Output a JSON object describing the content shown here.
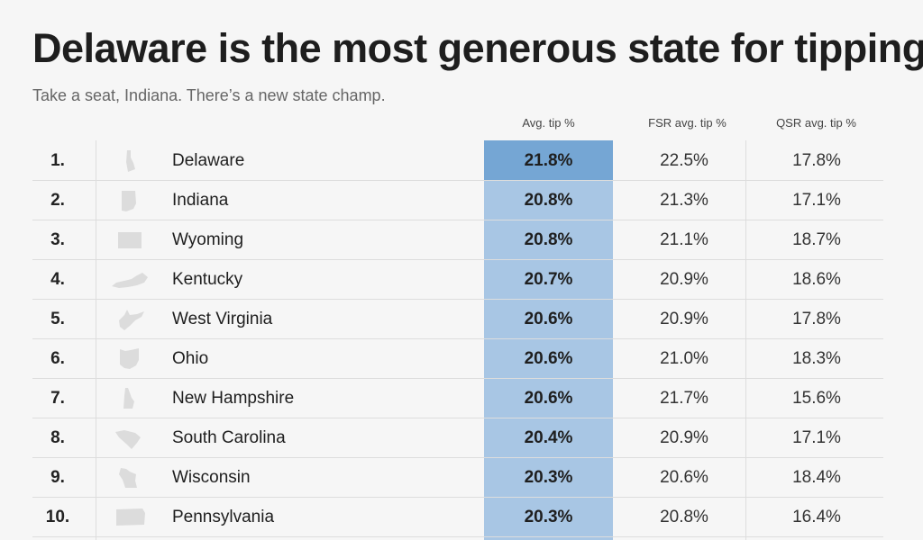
{
  "title": "Delaware is the most generous state for tipping",
  "subtitle": "Take a seat, Indiana. There’s a new state champ.",
  "colors": {
    "background": "#f6f6f6",
    "highlight_column": "#a8c6e4",
    "highlight_top": "#75a6d4",
    "state_shape": "#dcdcdc",
    "grid": "#dddddd"
  },
  "chart_data": {
    "type": "table",
    "title": "Delaware is the most generous state for tipping",
    "subtitle": "Take a seat, Indiana. There’s a new state champ.",
    "columns": [
      "Avg. tip %",
      "FSR avg. tip %",
      "QSR avg. tip %"
    ],
    "highlighted_column": "Avg. tip %",
    "rows": [
      {
        "rank": "1.",
        "state": "Delaware",
        "shape_icon": "delaware-shape-icon",
        "avg": "21.8%",
        "fsr": "22.5%",
        "qsr": "17.8%"
      },
      {
        "rank": "2.",
        "state": "Indiana",
        "shape_icon": "indiana-shape-icon",
        "avg": "20.8%",
        "fsr": "21.3%",
        "qsr": "17.1%"
      },
      {
        "rank": "3.",
        "state": "Wyoming",
        "shape_icon": "wyoming-shape-icon",
        "avg": "20.8%",
        "fsr": "21.1%",
        "qsr": "18.7%"
      },
      {
        "rank": "4.",
        "state": "Kentucky",
        "shape_icon": "kentucky-shape-icon",
        "avg": "20.7%",
        "fsr": "20.9%",
        "qsr": "18.6%"
      },
      {
        "rank": "5.",
        "state": "West Virginia",
        "shape_icon": "west-virginia-shape-icon",
        "avg": "20.6%",
        "fsr": "20.9%",
        "qsr": "17.8%"
      },
      {
        "rank": "6.",
        "state": "Ohio",
        "shape_icon": "ohio-shape-icon",
        "avg": "20.6%",
        "fsr": "21.0%",
        "qsr": "18.3%"
      },
      {
        "rank": "7.",
        "state": "New Hampshire",
        "shape_icon": "new-hampshire-shape-icon",
        "avg": "20.6%",
        "fsr": "21.7%",
        "qsr": "15.6%"
      },
      {
        "rank": "8.",
        "state": "South Carolina",
        "shape_icon": "south-carolina-shape-icon",
        "avg": "20.4%",
        "fsr": "20.9%",
        "qsr": "17.1%"
      },
      {
        "rank": "9.",
        "state": "Wisconsin",
        "shape_icon": "wisconsin-shape-icon",
        "avg": "20.3%",
        "fsr": "20.6%",
        "qsr": "18.4%"
      },
      {
        "rank": "10.",
        "state": "Pennsylvania",
        "shape_icon": "pennsylvania-shape-icon",
        "avg": "20.3%",
        "fsr": "20.8%",
        "qsr": "16.4%"
      }
    ]
  }
}
